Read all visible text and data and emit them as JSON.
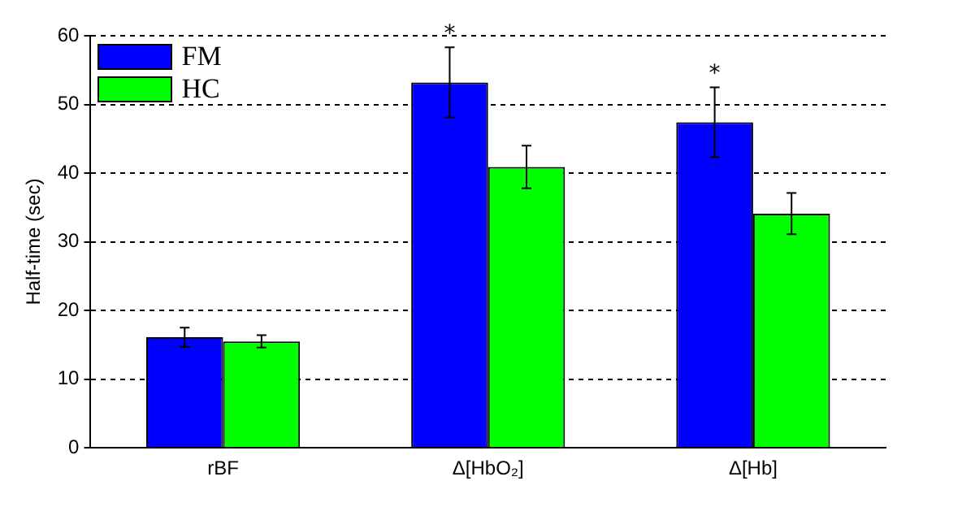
{
  "chart_data": {
    "type": "bar",
    "ylabel": "Half-time (sec)",
    "categories": [
      "rBF",
      "Δ[HbO₂]",
      "Δ[Hb]"
    ],
    "series": [
      {
        "name": "FM",
        "color": "#0000ff",
        "values": [
          16.1,
          53.2,
          47.4
        ],
        "errors": [
          1.4,
          5.1,
          5.1
        ]
      },
      {
        "name": "HC",
        "color": "#00ff00",
        "values": [
          15.5,
          40.9,
          34.1
        ],
        "errors": [
          0.9,
          3.1,
          3.0
        ]
      }
    ],
    "ylim": [
      0,
      60
    ],
    "yticks": [
      0,
      10,
      20,
      30,
      40,
      50,
      60
    ],
    "grid": "y",
    "legend": "top left",
    "annotations": [
      "*",
      "*"
    ]
  }
}
